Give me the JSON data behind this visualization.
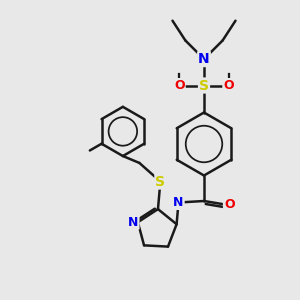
{
  "background_color": "#e8e8e8",
  "bond_color": "#1a1a1a",
  "bond_width": 1.8,
  "atom_colors": {
    "N": "#0000ee",
    "S": "#cccc00",
    "O": "#ee0000",
    "C": "#1a1a1a"
  },
  "figsize": [
    3.0,
    3.0
  ],
  "dpi": 100,
  "xlim": [
    0,
    10
  ],
  "ylim": [
    0,
    10
  ]
}
